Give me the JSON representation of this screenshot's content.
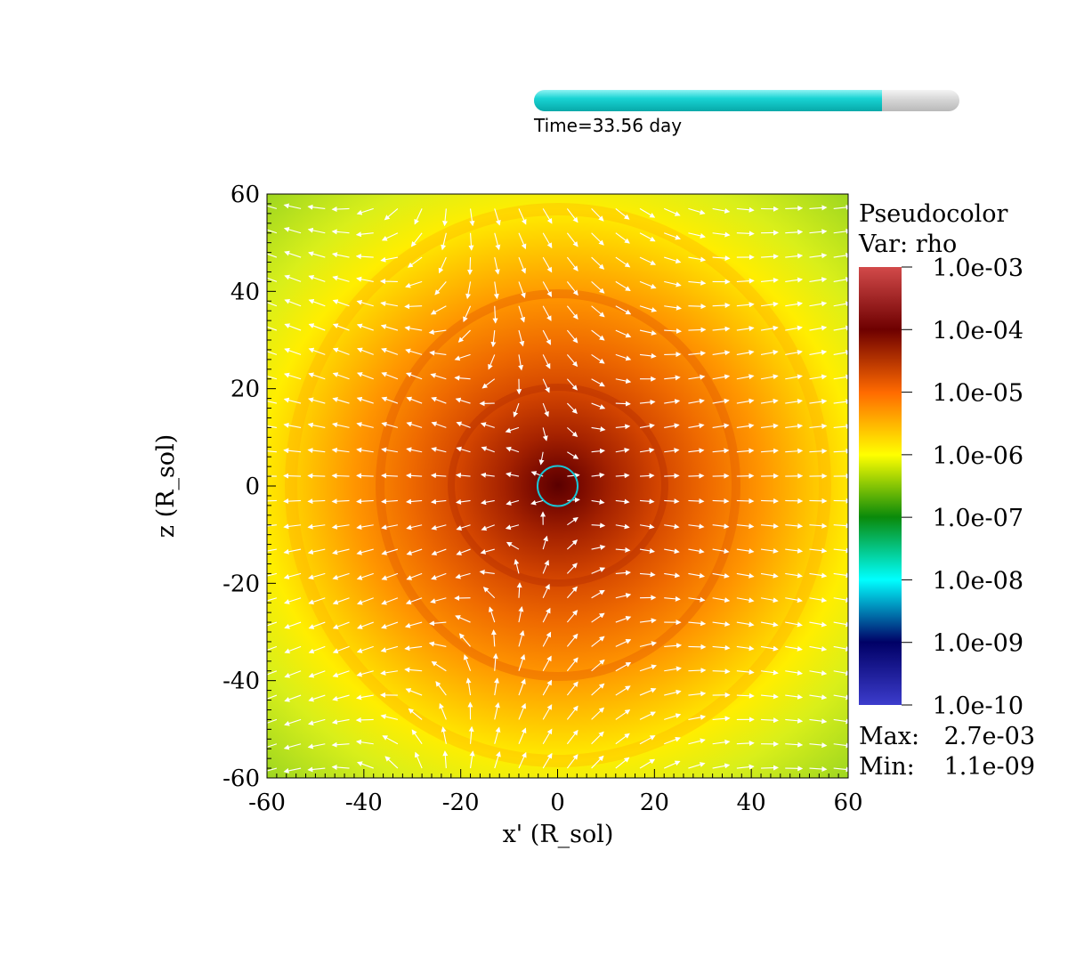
{
  "time": {
    "label": "Time=33.56 day",
    "progress": 0.819
  },
  "legend": {
    "title": "Pseudocolor",
    "var_label": "Var: rho",
    "colorbar_labels": [
      "1.0e-03",
      "1.0e-04",
      "1.0e-05",
      "1.0e-06",
      "1.0e-07",
      "1.0e-08",
      "1.0e-09",
      "1.0e-10"
    ],
    "max_label": "Max:",
    "max_value": "2.7e-03",
    "min_label": "Min:",
    "min_value": "1.1e-09",
    "colors": [
      "#d24a4a",
      "#6e0000",
      "#ff6a00",
      "#ffff00",
      "#0a8a0a",
      "#00ffff",
      "#000066",
      "#3c3ccc"
    ]
  },
  "chart_data": {
    "type": "heatmap",
    "title": "",
    "xlabel": "x' (R_sol)",
    "ylabel": "z (R_sol)",
    "xlim": [
      -60,
      60
    ],
    "ylim": [
      -60,
      60
    ],
    "x_ticks": [
      "-60",
      "-40",
      "-20",
      "0",
      "20",
      "40",
      "60"
    ],
    "y_ticks": [
      "60",
      "40",
      "20",
      "0",
      "-20",
      "-40",
      "-60"
    ],
    "variable": "rho",
    "color_scale": "log",
    "value_range": [
      1e-10,
      0.001
    ],
    "data_max": 0.0027,
    "data_min": 1.1e-09,
    "marker": {
      "shape": "circle",
      "center": [
        0,
        0
      ],
      "radius": 2.3,
      "color": "#19c5d6"
    },
    "vector_field": "velocity",
    "vector_color": "#ffffff"
  }
}
